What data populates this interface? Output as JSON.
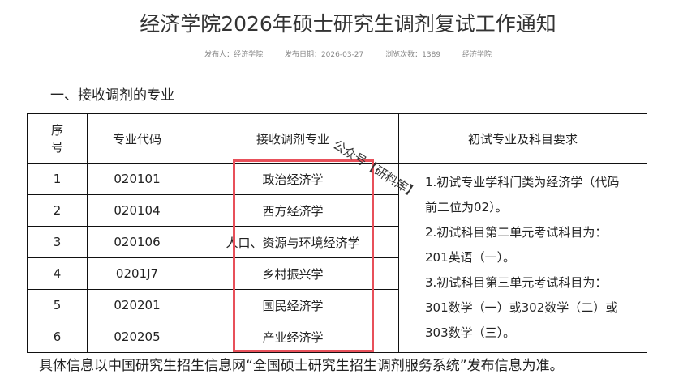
{
  "title": "经济学院2026年硕士研究生调剂复试工作通知",
  "meta": {
    "publisher": "发布人：经济学院",
    "date": "发布日期：2026-03-27",
    "views": "浏览次数：1389",
    "dept": "经济学院"
  },
  "section_heading": "一、接收调剂的专业",
  "table": {
    "headers": [
      "序号",
      "专业代码",
      "接收调剂专业",
      "初试专业及科目要求"
    ],
    "rows": [
      {
        "no": "1",
        "code": "020101",
        "major": "政治经济学"
      },
      {
        "no": "2",
        "code": "020104",
        "major": "西方经济学"
      },
      {
        "no": "3",
        "code": "020106",
        "major": "人口、资源与环境经济学"
      },
      {
        "no": "4",
        "code": "0201J7",
        "major": "乡村振兴学"
      },
      {
        "no": "5",
        "code": "020201",
        "major": "国民经济学"
      },
      {
        "no": "6",
        "code": "020205",
        "major": "产业经济学"
      }
    ],
    "requirements": [
      "1.初试专业学科门类为经济学（代码前二位为02）。",
      "2.初试科目第二单元考试科目为：201英语（一）。",
      "3.初试科目第三单元考试科目为：301数学（一）或302数学（二）或303数学（三）。"
    ]
  },
  "watermark": "公众号【研料库】",
  "footer": "具体信息以中国研究生招生信息网“全国硕士研究生招生调剂服务系统”发布信息为准。",
  "colors": {
    "highlight_box": "#e8505a"
  }
}
